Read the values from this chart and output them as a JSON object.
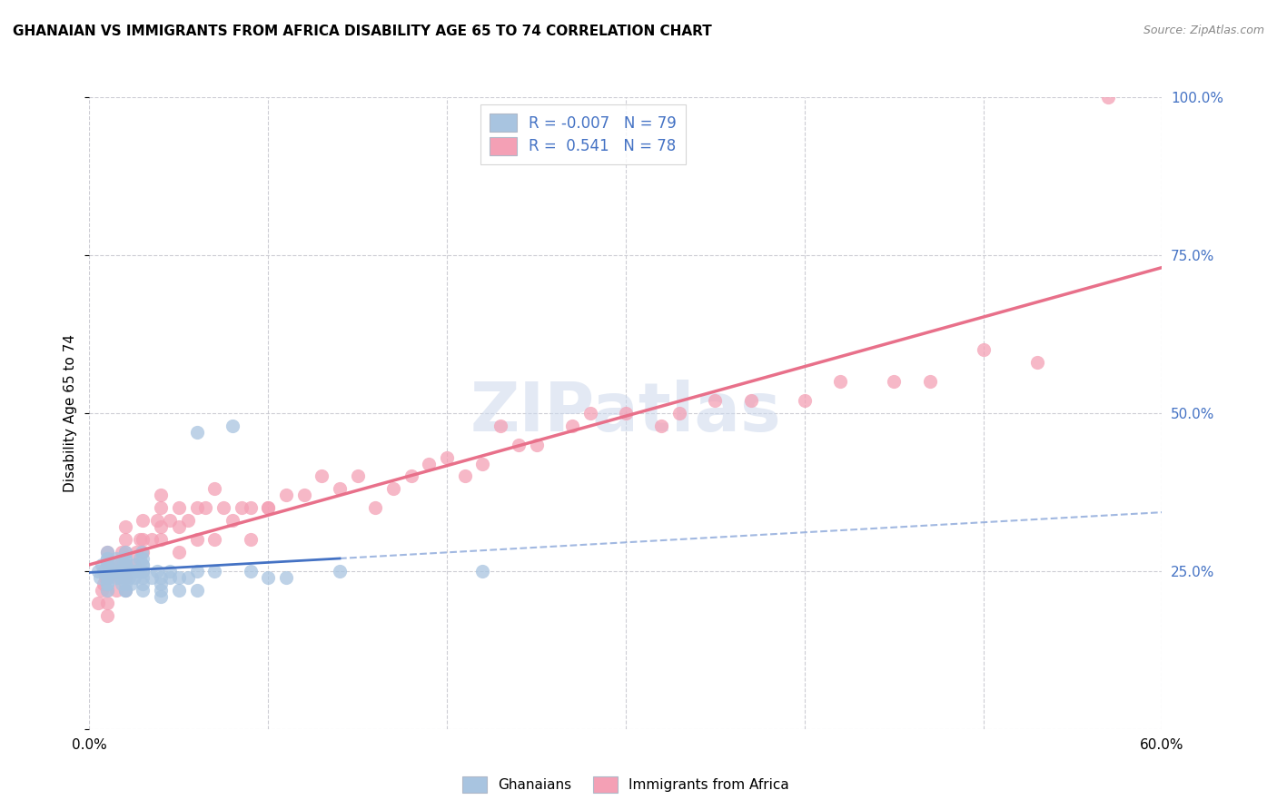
{
  "title": "GHANAIAN VS IMMIGRANTS FROM AFRICA DISABILITY AGE 65 TO 74 CORRELATION CHART",
  "source": "Source: ZipAtlas.com",
  "ylabel": "Disability Age 65 to 74",
  "xlim": [
    0.0,
    0.6
  ],
  "ylim": [
    0.0,
    1.0
  ],
  "ghanaian_R": -0.007,
  "ghanaian_N": 79,
  "immigrant_R": 0.541,
  "immigrant_N": 78,
  "ghanaian_color": "#a8c4e0",
  "immigrant_color": "#f4a0b5",
  "ghanaian_line_color": "#4472c4",
  "immigrant_line_color": "#e8708a",
  "watermark": "ZIPatlas",
  "ghanaian_x": [
    0.005,
    0.006,
    0.007,
    0.008,
    0.009,
    0.01,
    0.01,
    0.01,
    0.01,
    0.01,
    0.01,
    0.01,
    0.01,
    0.01,
    0.01,
    0.01,
    0.01,
    0.01,
    0.01,
    0.015,
    0.015,
    0.015,
    0.015,
    0.016,
    0.017,
    0.018,
    0.018,
    0.019,
    0.02,
    0.02,
    0.02,
    0.02,
    0.02,
    0.02,
    0.02,
    0.02,
    0.02,
    0.02,
    0.02,
    0.02,
    0.021,
    0.022,
    0.023,
    0.024,
    0.025,
    0.025,
    0.026,
    0.027,
    0.028,
    0.029,
    0.03,
    0.03,
    0.03,
    0.03,
    0.03,
    0.03,
    0.03,
    0.03,
    0.035,
    0.038,
    0.04,
    0.04,
    0.04,
    0.04,
    0.045,
    0.045,
    0.05,
    0.05,
    0.055,
    0.06,
    0.06,
    0.06,
    0.07,
    0.08,
    0.09,
    0.1,
    0.11,
    0.14,
    0.22
  ],
  "ghanaian_y": [
    0.25,
    0.24,
    0.26,
    0.25,
    0.25,
    0.25,
    0.25,
    0.25,
    0.25,
    0.26,
    0.27,
    0.24,
    0.24,
    0.23,
    0.23,
    0.22,
    0.26,
    0.27,
    0.28,
    0.25,
    0.26,
    0.27,
    0.24,
    0.25,
    0.24,
    0.23,
    0.25,
    0.26,
    0.27,
    0.28,
    0.26,
    0.25,
    0.24,
    0.23,
    0.22,
    0.27,
    0.26,
    0.25,
    0.24,
    0.22,
    0.25,
    0.24,
    0.23,
    0.25,
    0.26,
    0.24,
    0.25,
    0.25,
    0.27,
    0.28,
    0.25,
    0.26,
    0.27,
    0.24,
    0.23,
    0.22,
    0.25,
    0.26,
    0.24,
    0.25,
    0.23,
    0.24,
    0.22,
    0.21,
    0.24,
    0.25,
    0.24,
    0.22,
    0.24,
    0.22,
    0.25,
    0.47,
    0.25,
    0.48,
    0.25,
    0.24,
    0.24,
    0.25,
    0.25
  ],
  "immigrant_x": [
    0.005,
    0.007,
    0.008,
    0.009,
    0.01,
    0.01,
    0.01,
    0.01,
    0.01,
    0.01,
    0.015,
    0.016,
    0.017,
    0.018,
    0.02,
    0.02,
    0.02,
    0.02,
    0.02,
    0.02,
    0.025,
    0.026,
    0.028,
    0.03,
    0.03,
    0.03,
    0.035,
    0.038,
    0.04,
    0.04,
    0.04,
    0.04,
    0.045,
    0.05,
    0.05,
    0.05,
    0.055,
    0.06,
    0.06,
    0.065,
    0.07,
    0.07,
    0.075,
    0.08,
    0.085,
    0.09,
    0.09,
    0.1,
    0.1,
    0.11,
    0.12,
    0.13,
    0.14,
    0.15,
    0.16,
    0.17,
    0.18,
    0.19,
    0.2,
    0.21,
    0.22,
    0.23,
    0.24,
    0.25,
    0.27,
    0.28,
    0.3,
    0.32,
    0.33,
    0.35,
    0.37,
    0.4,
    0.42,
    0.45,
    0.47,
    0.5,
    0.53,
    0.57
  ],
  "immigrant_y": [
    0.2,
    0.22,
    0.23,
    0.24,
    0.2,
    0.22,
    0.24,
    0.26,
    0.28,
    0.18,
    0.22,
    0.24,
    0.26,
    0.28,
    0.22,
    0.24,
    0.26,
    0.28,
    0.3,
    0.32,
    0.26,
    0.28,
    0.3,
    0.28,
    0.3,
    0.33,
    0.3,
    0.33,
    0.3,
    0.32,
    0.35,
    0.37,
    0.33,
    0.28,
    0.32,
    0.35,
    0.33,
    0.3,
    0.35,
    0.35,
    0.3,
    0.38,
    0.35,
    0.33,
    0.35,
    0.3,
    0.35,
    0.35,
    0.35,
    0.37,
    0.37,
    0.4,
    0.38,
    0.4,
    0.35,
    0.38,
    0.4,
    0.42,
    0.43,
    0.4,
    0.42,
    0.48,
    0.45,
    0.45,
    0.48,
    0.5,
    0.5,
    0.48,
    0.5,
    0.52,
    0.52,
    0.52,
    0.55,
    0.55,
    0.55,
    0.6,
    0.58,
    1.0
  ]
}
